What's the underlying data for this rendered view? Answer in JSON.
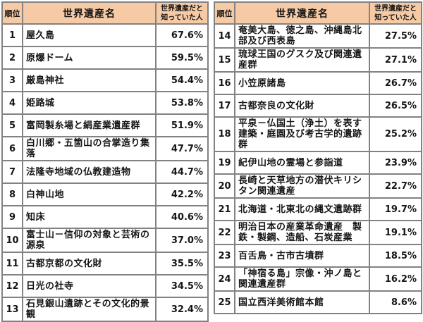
{
  "header": {
    "rank_label": "順位",
    "name_label": "世界遺産名",
    "value_label": "世界遺産だと知っていた人"
  },
  "colors": {
    "header_bg": "#f5caa5",
    "border": "#828282",
    "text": "#151515",
    "background": "#ffffff"
  },
  "tables": [
    {
      "rows": [
        {
          "rank": "1",
          "name": "屋久島",
          "value": "67.6%"
        },
        {
          "rank": "2",
          "name": "原爆ドーム",
          "value": "59.5%"
        },
        {
          "rank": "3",
          "name": "厳島神社",
          "value": "54.4%"
        },
        {
          "rank": "4",
          "name": "姫路城",
          "value": "53.8%"
        },
        {
          "rank": "5",
          "name": "富岡製糸場と絹産業遺産群",
          "value": "51.9%"
        },
        {
          "rank": "6",
          "name": "白川郷・五箇山の合掌造り集落",
          "value": "47.7%"
        },
        {
          "rank": "7",
          "name": "法隆寺地域の仏教建造物",
          "value": "44.7%"
        },
        {
          "rank": "8",
          "name": "白神山地",
          "value": "42.2%"
        },
        {
          "rank": "9",
          "name": "知床",
          "value": "40.6%"
        },
        {
          "rank": "10",
          "name": "富士山－信仰の対象と芸術の源泉",
          "value": "37.0%"
        },
        {
          "rank": "11",
          "name": "古都京都の文化財",
          "value": "35.5%"
        },
        {
          "rank": "12",
          "name": "日光の社寺",
          "value": "34.5%"
        },
        {
          "rank": "13",
          "name": "石見銀山遺跡とその文化的景観",
          "value": "32.4%"
        }
      ]
    },
    {
      "rows": [
        {
          "rank": "14",
          "name": "奄美大島、徳之島、沖縄島北部及び西表島",
          "value": "27.5%"
        },
        {
          "rank": "15",
          "name": "琉球王国のグスク及び関連遺産群",
          "value": "27.1%"
        },
        {
          "rank": "16",
          "name": "小笠原諸島",
          "value": "26.7%"
        },
        {
          "rank": "17",
          "name": "古都奈良の文化財",
          "value": "26.5%"
        },
        {
          "rank": "18",
          "name": "平泉－仏国土（浄土）を表す建築・庭園及び考古学的遺跡群",
          "value": "25.2%"
        },
        {
          "rank": "19",
          "name": "紀伊山地の霊場と参詣道",
          "value": "23.9%"
        },
        {
          "rank": "20",
          "name": "長崎と天草地方の潜伏キリシタン関連遺産",
          "value": "22.7%"
        },
        {
          "rank": "21",
          "name": "北海道・北東北の縄文遺跡群",
          "value": "19.7%"
        },
        {
          "rank": "22",
          "name": "明治日本の産業革命遺産　製鉄・製鋼、造船、石炭産業",
          "value": "19.1%"
        },
        {
          "rank": "23",
          "name": "百舌鳥・古市古墳群",
          "value": "18.5%"
        },
        {
          "rank": "24",
          "name": "「神宿る島」宗像・沖ノ島と関連遺産群",
          "value": "16.2%"
        },
        {
          "rank": "25",
          "name": "国立西洋美術館本館",
          "value": "8.6%"
        }
      ]
    }
  ],
  "chart_data": {
    "type": "table",
    "title": "",
    "columns": [
      "順位",
      "世界遺産名",
      "世界遺産だと知っていた人"
    ],
    "rows": [
      [
        1,
        "屋久島",
        67.6
      ],
      [
        2,
        "原爆ドーム",
        59.5
      ],
      [
        3,
        "厳島神社",
        54.4
      ],
      [
        4,
        "姫路城",
        53.8
      ],
      [
        5,
        "富岡製糸場と絹産業遺産群",
        51.9
      ],
      [
        6,
        "白川郷・五箇山の合掌造り集落",
        47.7
      ],
      [
        7,
        "法隆寺地域の仏教建造物",
        44.7
      ],
      [
        8,
        "白神山地",
        42.2
      ],
      [
        9,
        "知床",
        40.6
      ],
      [
        10,
        "富士山－信仰の対象と芸術の源泉",
        37.0
      ],
      [
        11,
        "古都京都の文化財",
        35.5
      ],
      [
        12,
        "日光の社寺",
        34.5
      ],
      [
        13,
        "石見銀山遺跡とその文化的景観",
        32.4
      ],
      [
        14,
        "奄美大島、徳之島、沖縄島北部及び西表島",
        27.5
      ],
      [
        15,
        "琉球王国のグスク及び関連遺産群",
        27.1
      ],
      [
        16,
        "小笠原諸島",
        26.7
      ],
      [
        17,
        "古都奈良の文化財",
        26.5
      ],
      [
        18,
        "平泉－仏国土（浄土）を表す建築・庭園及び考古学的遺跡群",
        25.2
      ],
      [
        19,
        "紀伊山地の霊場と参詣道",
        23.9
      ],
      [
        20,
        "長崎と天草地方の潜伏キリシタン関連遺産",
        22.7
      ],
      [
        21,
        "北海道・北東北の縄文遺跡群",
        19.7
      ],
      [
        22,
        "明治日本の産業革命遺産　製鉄・製鋼、造船、石炭産業",
        19.1
      ],
      [
        23,
        "百舌鳥・古市古墳群",
        18.5
      ],
      [
        24,
        "「神宿る島」宗像・沖ノ島と関連遺産群",
        16.2
      ],
      [
        25,
        "国立西洋美術館本館",
        8.6
      ]
    ],
    "value_unit": "%"
  }
}
